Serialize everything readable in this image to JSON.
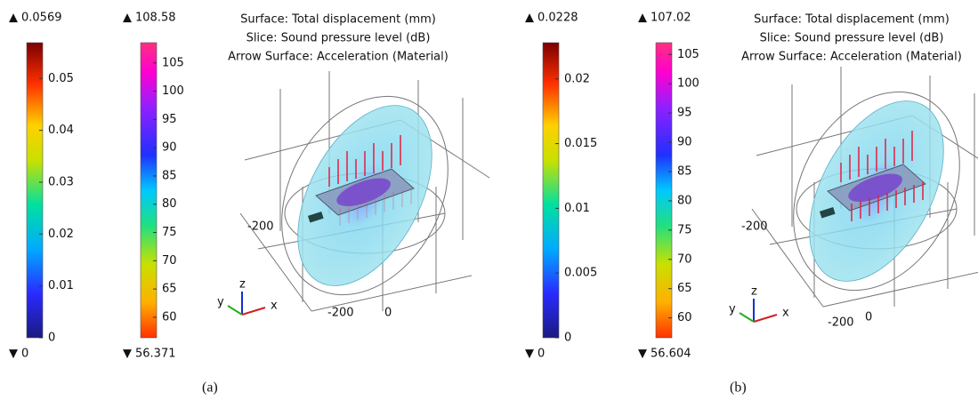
{
  "panels": [
    {
      "label": "(a)",
      "title_lines": [
        "Surface: Total displacement (mm)",
        "Slice: Sound pressure level (dB)",
        "Arrow Surface: Acceleration (Material)"
      ],
      "colorbars": [
        {
          "max": 0.0569,
          "min": 0,
          "ticks": [
            0,
            0.01,
            0.02,
            0.03,
            0.04,
            0.05
          ]
        },
        {
          "max": 108.58,
          "min": 56.371,
          "ticks": [
            60,
            65,
            70,
            75,
            80,
            85,
            90,
            95,
            100,
            105
          ]
        }
      ],
      "axis_labels": [
        "-200",
        "-200",
        "0"
      ],
      "triad": [
        "x",
        "y",
        "z"
      ]
    },
    {
      "label": "(b)",
      "title_lines": [
        "Surface: Total displacement (mm)",
        "Slice: Sound pressure level (dB)",
        "Arrow Surface: Acceleration (Material)"
      ],
      "colorbars": [
        {
          "max": 0.0228,
          "min": 0,
          "ticks": [
            0,
            0.005,
            0.01,
            0.015,
            0.02
          ]
        },
        {
          "max": 107.02,
          "min": 56.604,
          "ticks": [
            60,
            65,
            70,
            75,
            80,
            85,
            90,
            95,
            100,
            105
          ]
        }
      ],
      "axis_labels": [
        "-200",
        "-200",
        "0"
      ],
      "triad": [
        "x",
        "y",
        "z"
      ]
    }
  ]
}
